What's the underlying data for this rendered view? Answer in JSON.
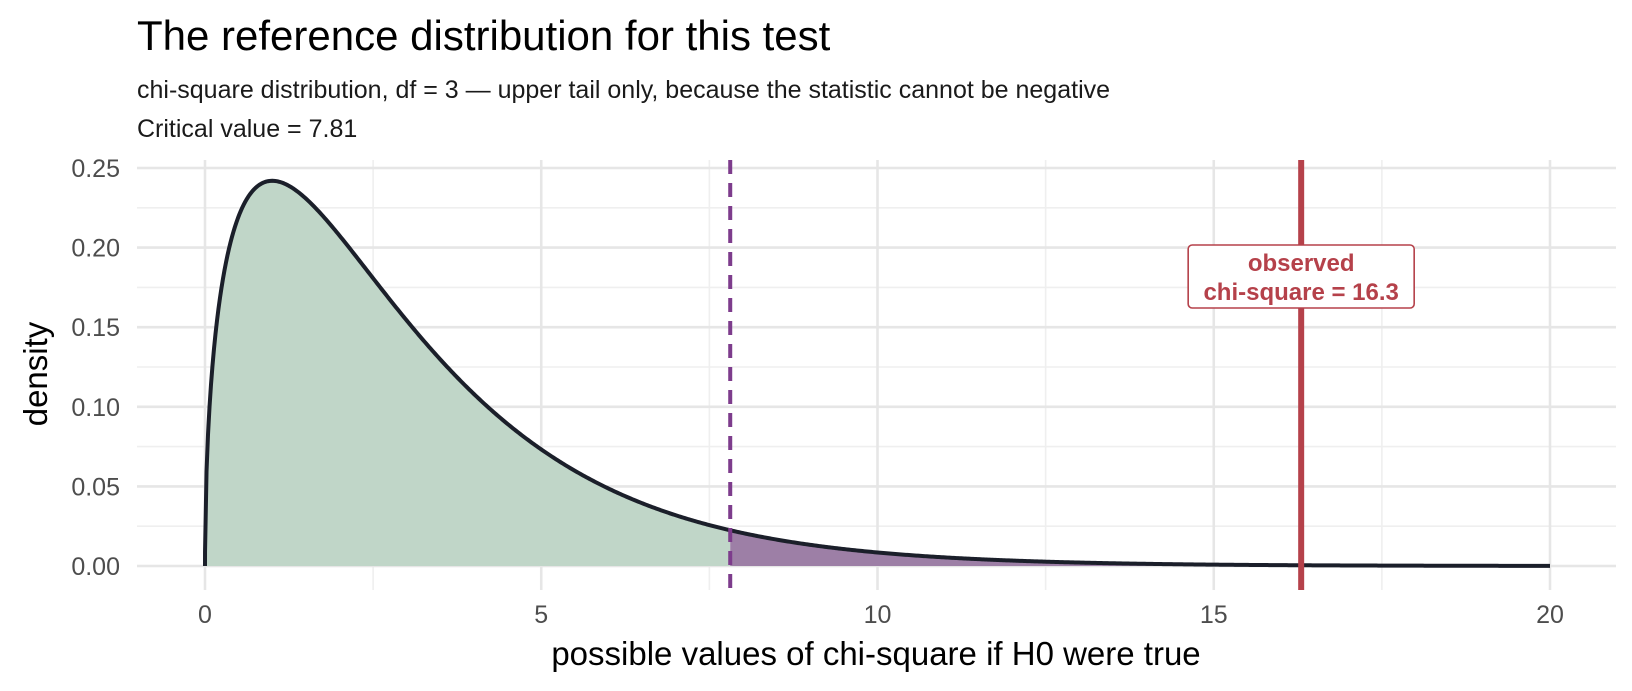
{
  "chart_data": {
    "type": "area",
    "title": "The reference distribution for this test",
    "subtitle_line1": "chi-square distribution, df = 3 — upper tail only, because the statistic cannot be negative",
    "subtitle_line2": "Critical value = 7.81",
    "xlabel": "possible values of chi-square if H0 were true",
    "ylabel": "density",
    "xlim": [
      0,
      20
    ],
    "ylim": [
      0,
      0.25
    ],
    "x_ticks": [
      0,
      5,
      10,
      15,
      20
    ],
    "x_tick_labels": [
      "0",
      "5",
      "10",
      "15",
      "20"
    ],
    "y_ticks": [
      0,
      0.05,
      0.1,
      0.15,
      0.2,
      0.25
    ],
    "y_tick_labels": [
      "0.00",
      "0.05",
      "0.10",
      "0.15",
      "0.20",
      "0.25"
    ],
    "grid": true,
    "distribution": {
      "family": "chi-square",
      "df": 3
    },
    "critical_value": 7.81,
    "observed_value": 16.3,
    "annotation": {
      "line1": "observed",
      "line2": "chi-square = 16.3"
    },
    "colors": {
      "curve": "#1b1f2a",
      "body_fill": "#c0d6c8",
      "tail_fill": "#9d7fa6",
      "critical_line": "#7d3c8c",
      "observed_line": "#b5414a"
    }
  }
}
